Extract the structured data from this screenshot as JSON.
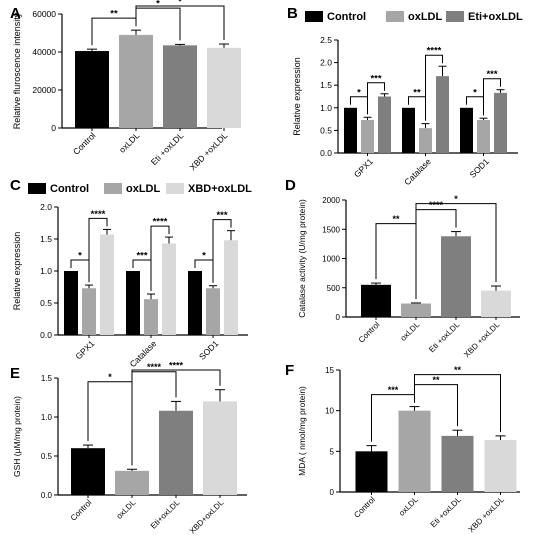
{
  "colors": {
    "Control": "#000000",
    "oxLDL": "#a6a6a6",
    "Eti+oxLDL": "#7f7f7f",
    "XBD+oxLDL": "#d9d9d9",
    "XBD +oxLDL": "#d9d9d9",
    "Eti +oxLDL": "#7f7f7f"
  },
  "chart_data": [
    {
      "panel": "A",
      "type": "bar",
      "ylabel": "Relative fluroscence intensity",
      "ylim": [
        0,
        60000
      ],
      "yticks": [
        0,
        20000,
        40000,
        60000
      ],
      "categories": [
        "Control",
        "oxLDL",
        "Eti +oxLDL",
        "XBD +oxLDL"
      ],
      "values": [
        40500,
        49000,
        43500,
        42200
      ],
      "errors": [
        1000,
        2500,
        500,
        2000
      ],
      "sig": [
        {
          "from": 0,
          "to": 1,
          "label": "**"
        },
        {
          "from": 1,
          "to": 2,
          "label": "*"
        },
        {
          "from": 1,
          "to": 3,
          "label": "*"
        }
      ]
    },
    {
      "panel": "B",
      "type": "bar",
      "ylabel": "Relative expression",
      "ylim": [
        0,
        2.5
      ],
      "yticks": [
        0.0,
        0.5,
        1.0,
        1.5,
        2.0,
        2.5
      ],
      "categories": [
        "GPX1",
        "Catalase",
        "SOD1"
      ],
      "legend": [
        "Control",
        "oxLDL",
        "Eti+oxLDL"
      ],
      "series": [
        {
          "name": "Control",
          "values": [
            1.0,
            1.0,
            1.0
          ],
          "errors": [
            0,
            0,
            0
          ]
        },
        {
          "name": "oxLDL",
          "values": [
            0.73,
            0.55,
            0.73
          ],
          "errors": [
            0.06,
            0.1,
            0.04
          ]
        },
        {
          "name": "Eti+oxLDL",
          "values": [
            1.25,
            1.7,
            1.33
          ],
          "errors": [
            0.06,
            0.22,
            0.07
          ]
        }
      ],
      "sig": [
        {
          "cat": 0,
          "from": 0,
          "to": 1,
          "label": "*"
        },
        {
          "cat": 0,
          "from": 1,
          "to": 2,
          "label": "***"
        },
        {
          "cat": 1,
          "from": 0,
          "to": 1,
          "label": "**"
        },
        {
          "cat": 1,
          "from": 1,
          "to": 2,
          "label": "****"
        },
        {
          "cat": 2,
          "from": 0,
          "to": 1,
          "label": "*"
        },
        {
          "cat": 2,
          "from": 1,
          "to": 2,
          "label": "***"
        }
      ]
    },
    {
      "panel": "C",
      "type": "bar",
      "ylabel": "Relative expression",
      "ylim": [
        0,
        2.0
      ],
      "yticks": [
        0.0,
        0.5,
        1.0,
        1.5,
        2.0
      ],
      "categories": [
        "GPX1",
        "Catalase",
        "SOD1"
      ],
      "legend": [
        "Control",
        "oxLDL",
        "XBD+oxLDL"
      ],
      "series": [
        {
          "name": "Control",
          "values": [
            1.0,
            1.0,
            1.0
          ],
          "errors": [
            0,
            0,
            0
          ]
        },
        {
          "name": "oxLDL",
          "values": [
            0.73,
            0.56,
            0.73
          ],
          "errors": [
            0.05,
            0.08,
            0.04
          ]
        },
        {
          "name": "XBD+oxLDL",
          "values": [
            1.57,
            1.43,
            1.48
          ],
          "errors": [
            0.08,
            0.1,
            0.15
          ]
        }
      ],
      "sig": [
        {
          "cat": 0,
          "from": 0,
          "to": 1,
          "label": "*"
        },
        {
          "cat": 0,
          "from": 1,
          "to": 2,
          "label": "****"
        },
        {
          "cat": 1,
          "from": 0,
          "to": 1,
          "label": "***"
        },
        {
          "cat": 1,
          "from": 1,
          "to": 2,
          "label": "****"
        },
        {
          "cat": 2,
          "from": 0,
          "to": 1,
          "label": "*"
        },
        {
          "cat": 2,
          "from": 1,
          "to": 2,
          "label": "***"
        }
      ]
    },
    {
      "panel": "D",
      "type": "bar",
      "ylabel": "Catalase activity (U/mg protein)",
      "ylim": [
        0,
        2000
      ],
      "yticks": [
        0,
        500,
        1000,
        1500,
        2000
      ],
      "categories": [
        "Control",
        "oxLDL",
        "Eti +oxLDL",
        "XBD +oxLDL"
      ],
      "values": [
        550,
        230,
        1380,
        450
      ],
      "errors": [
        30,
        10,
        80,
        80
      ],
      "sig": [
        {
          "from": 0,
          "to": 1,
          "label": "**"
        },
        {
          "from": 1,
          "to": 2,
          "label": "****"
        },
        {
          "from": 1,
          "to": 3,
          "label": "*"
        }
      ]
    },
    {
      "panel": "E",
      "type": "bar",
      "ylabel": "GSH (μM/mg protein)",
      "ylim": [
        0,
        1.5
      ],
      "yticks": [
        0.0,
        0.5,
        1.0,
        1.5
      ],
      "categories": [
        "Control",
        "oxLDL",
        "Eti+oxLDL",
        "XBD+oxLDL"
      ],
      "values": [
        0.6,
        0.31,
        1.08,
        1.2
      ],
      "errors": [
        0.04,
        0.02,
        0.12,
        0.15
      ],
      "sig": [
        {
          "from": 0,
          "to": 1,
          "label": "*"
        },
        {
          "from": 1,
          "to": 2,
          "label": "****"
        },
        {
          "from": 1,
          "to": 3,
          "label": "****"
        }
      ]
    },
    {
      "panel": "F",
      "type": "bar",
      "ylabel": "MDA ( nmol/mg protein)",
      "ylim": [
        0,
        15
      ],
      "yticks": [
        0,
        5,
        10,
        15
      ],
      "categories": [
        "Control",
        "oxLDL",
        "Eti +oxLDL",
        "XBD +oxLDL"
      ],
      "values": [
        5.0,
        10.0,
        6.9,
        6.4
      ],
      "errors": [
        0.7,
        0.5,
        0.7,
        0.5
      ],
      "sig": [
        {
          "from": 0,
          "to": 1,
          "label": "***"
        },
        {
          "from": 1,
          "to": 2,
          "label": "**"
        },
        {
          "from": 1,
          "to": 3,
          "label": "**"
        }
      ]
    }
  ]
}
